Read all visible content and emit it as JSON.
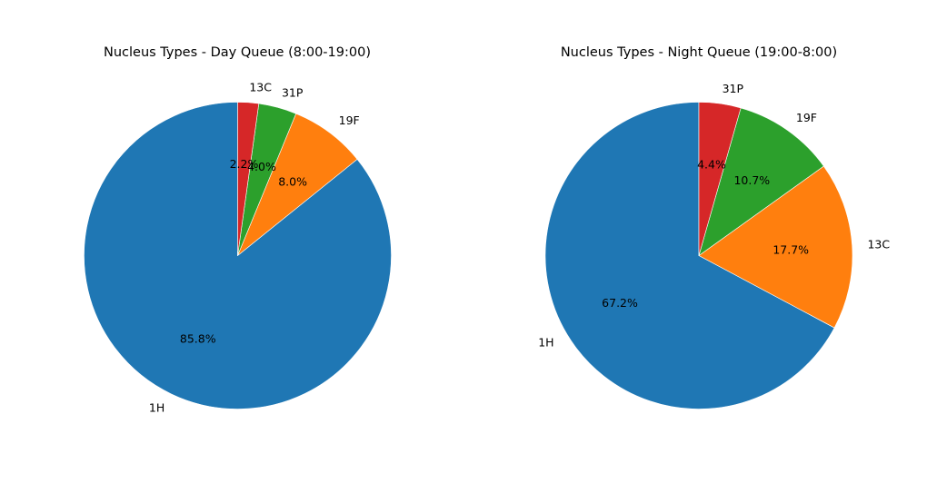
{
  "chart_data": [
    {
      "type": "pie",
      "title": "Nucleus Types - Day Queue (8:00-19:00)",
      "start_angle_deg": 90,
      "direction": "counterclockwise",
      "slices": [
        {
          "label": "1H",
          "value": 85.8,
          "pct_label": "85.8%",
          "color": "#1f77b4"
        },
        {
          "label": "19F",
          "value": 8.0,
          "pct_label": "8.0%",
          "color": "#ff7f0e"
        },
        {
          "label": "31P",
          "value": 4.0,
          "pct_label": "4.0%",
          "color": "#2ca02c"
        },
        {
          "label": "13C",
          "value": 2.2,
          "pct_label": "2.2%",
          "color": "#d62728"
        }
      ]
    },
    {
      "type": "pie",
      "title": "Nucleus Types - Night Queue (19:00-8:00)",
      "start_angle_deg": 90,
      "direction": "counterclockwise",
      "slices": [
        {
          "label": "1H",
          "value": 67.2,
          "pct_label": "67.2%",
          "color": "#1f77b4"
        },
        {
          "label": "13C",
          "value": 17.7,
          "pct_label": "17.7%",
          "color": "#ff7f0e"
        },
        {
          "label": "19F",
          "value": 10.7,
          "pct_label": "10.7%",
          "color": "#2ca02c"
        },
        {
          "label": "31P",
          "value": 4.4,
          "pct_label": "4.4%",
          "color": "#d62728"
        }
      ]
    }
  ]
}
